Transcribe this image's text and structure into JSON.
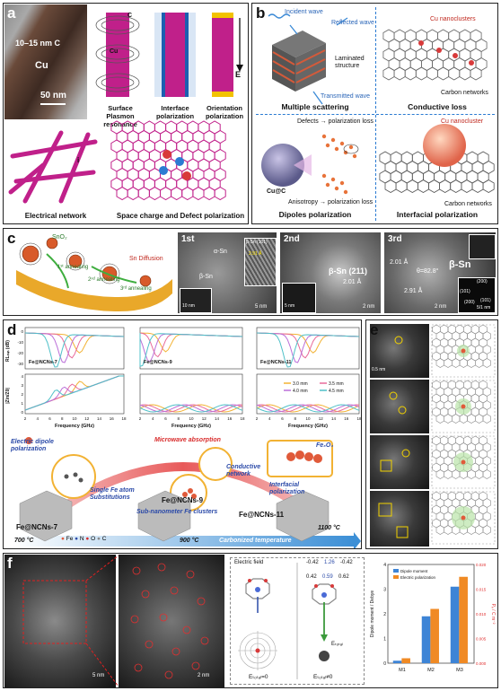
{
  "panel_a": {
    "label": "a",
    "tem_labels": {
      "c_shell": "10–15 nm C",
      "core": "Cu",
      "scale": "50 nm"
    },
    "schema_labels": {
      "c": "C",
      "cu": "Cu",
      "e": "E"
    },
    "captions": [
      "Surface Plasmon resonance",
      "Interface polarization",
      "Orientation polarization",
      "Electrical network",
      "Space charge and Defect polarization"
    ],
    "network_label": "i"
  },
  "panel_b": {
    "label": "b",
    "labels": {
      "incident": "Incident wave",
      "reflected": "Reflected wave",
      "laminated": "Laminated structure",
      "transmitted": "Transmitted wave",
      "cu_nano": "Cu nanoclusters",
      "carbon": "Carbon networks",
      "defects": "Defects → polarization loss",
      "cuc": "Cu@C",
      "anisotropy": "Anisotropy → polarization loss",
      "cu_nano2": "Cu nanocluster",
      "carbon2": "Carbon networks"
    },
    "captions": [
      "Multiple scattering",
      "Conductive loss",
      "Dipoles polarization",
      "Interfacial polarization"
    ]
  },
  "panel_c": {
    "label": "c",
    "schematic_labels": {
      "sno2": "SnO₂",
      "diffusion": "Sn Diffusion",
      "step1": "1ˢᵗ annealing",
      "step2": "2ⁿᵈ annealing",
      "step3": "3ʳᵈ annealing"
    },
    "img1": {
      "tag": "1st",
      "alpha": "α-Sn",
      "beta": "β-Sn",
      "hk": "β-Sn (101)",
      "d": "2.91 Å",
      "scale_in": "10 nm",
      "scale": "5 nm"
    },
    "img2": {
      "tag": "2nd",
      "phase": "β-Sn (211)",
      "d": "2.01 Å",
      "scale_in": "5 nm",
      "scale": "2 nm"
    },
    "img3": {
      "tag": "3rd",
      "d1": "2.01 Å",
      "angle": "θ=82.8°",
      "d2": "2.91 Å",
      "phase": "β-Sn",
      "idx": [
        "(200)",
        "(101)",
        "(200)",
        "(101)"
      ],
      "zone": "5/1 nm",
      "scale": "2 nm"
    }
  },
  "panel_d": {
    "label": "d",
    "plots": [
      {
        "title": "Fe@NCNs-7",
        "xlabel": "Frequency (GHz)"
      },
      {
        "title": "Fe@NCNs-9",
        "xlabel": "Frequency (GHz)"
      },
      {
        "title": "Fe@NCNs-11",
        "xlabel": "Frequency (GHz)"
      }
    ],
    "ylabel_top": "RLₘᵢₙ (dB)",
    "ylabel_bottom": "|Zin/Z0|",
    "x_ticks": [
      "2",
      "4",
      "6",
      "8",
      "10",
      "12",
      "14",
      "16",
      "18"
    ],
    "y_ticks_top": [
      "0",
      "-10",
      "-20",
      "-30"
    ],
    "y_ticks_bottom": [
      "0",
      "1",
      "2",
      "3",
      "4"
    ],
    "legend": [
      "3.0 mm",
      "3.5 mm",
      "4.0 mm",
      "4.5 mm"
    ],
    "legend_colors": [
      "#f2b233",
      "#e86a9a",
      "#bb6fd8",
      "#4fc0c8"
    ],
    "schematic": {
      "electric_dipole": "Electric dipole polarization",
      "single_fe": "Single Fe atom Substitutions",
      "microwave": "Microwave absorption",
      "conductive": "Conductive network",
      "interfacial": "Interfacial polarization",
      "fe3o4": "Fe₃O₄",
      "sub_nano": "Sub-nanometer Fe clusters",
      "sample7": "Fe@NCNs-7",
      "sample9": "Fe@NCNs-9",
      "sample11": "Fe@NCNs-11",
      "t700": "700 °C",
      "t900": "900 °C",
      "t1100": "1100 °C",
      "axis": "Carbonized temperature",
      "legend_elements": [
        "Fe",
        "N",
        "O",
        "C"
      ]
    }
  },
  "panel_e": {
    "label": "e",
    "scale": "0.5 nm"
  },
  "panel_f": {
    "label": "f",
    "scale1": "5 nm",
    "scale2": "2 nm",
    "efield": "Electric field",
    "charges_top": [
      "-0.42",
      "1.26",
      "-0.42"
    ],
    "charges_mid": [
      "0.42",
      "0.59",
      "0.62"
    ],
    "efield_zero": "Eₜₒₜₐₗ=0",
    "efield_nonzero": "Eₜₒₜₐₗ≠0",
    "etotal": "Eₜₒₜₐₗ",
    "chart_data": {
      "type": "bar",
      "categories": [
        "M1",
        "M2",
        "M3"
      ],
      "series": [
        {
          "name": "Dipole moment",
          "values": [
            0.1,
            1.9,
            3.1
          ],
          "color": "#3d84d6"
        },
        {
          "name": "Electric polarization",
          "values": [
            0.001,
            0.011,
            0.0175
          ],
          "color": "#f08a24"
        }
      ],
      "ylabel": "Dipole moment / Debye",
      "y2label": "Pₑ / C m⁻²",
      "ylim": [
        0,
        4
      ],
      "y2lim": [
        0,
        0.02
      ],
      "yticks": [
        "0",
        "1",
        "2",
        "3",
        "4"
      ],
      "y2ticks": [
        "0.000",
        "0.005",
        "0.010",
        "0.015",
        "0.020"
      ]
    }
  }
}
